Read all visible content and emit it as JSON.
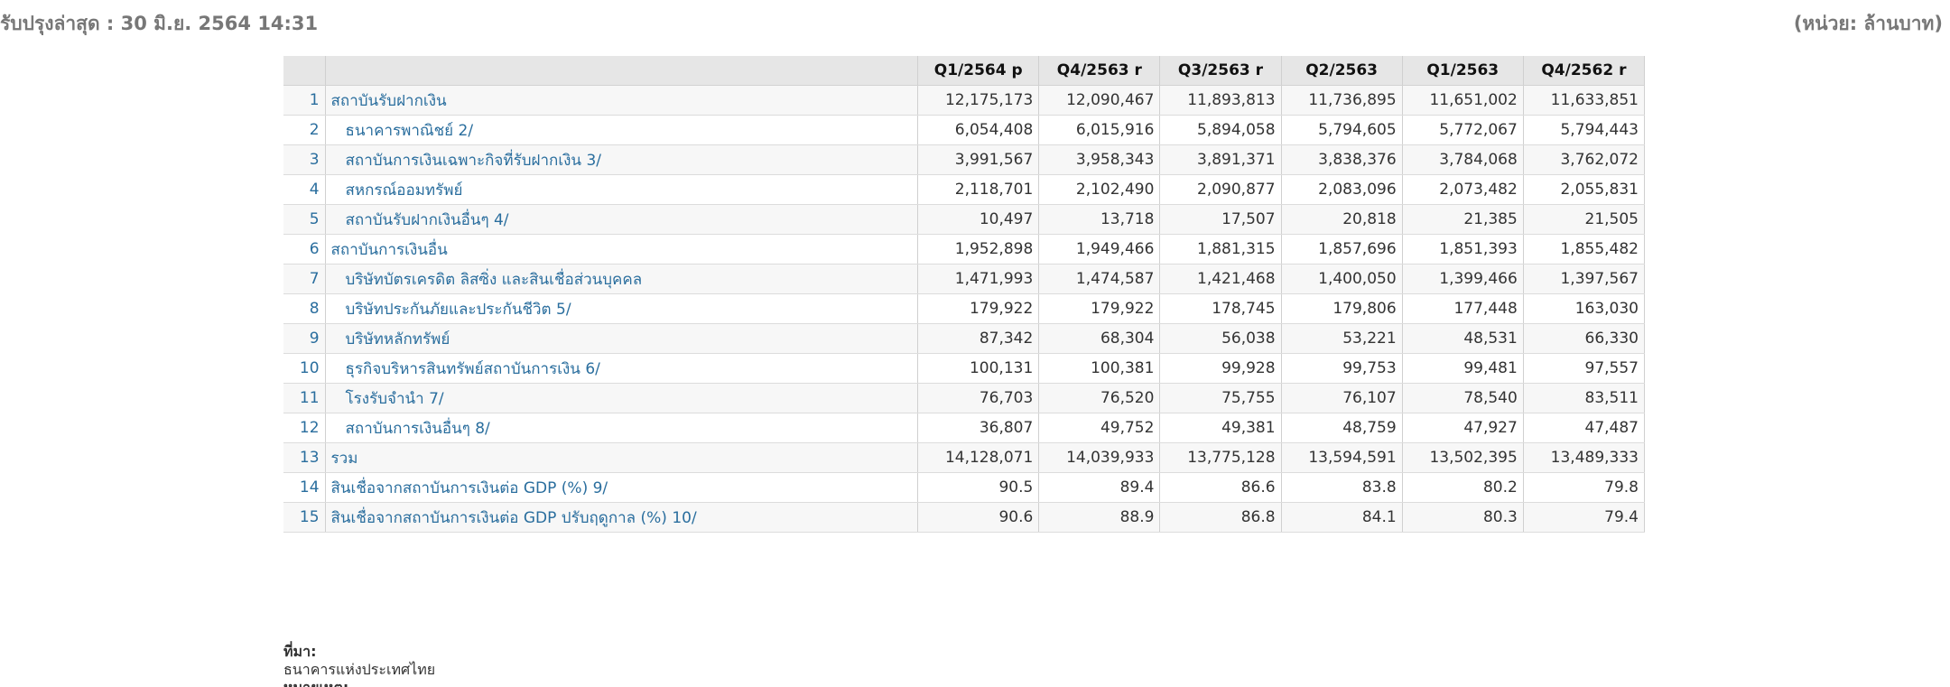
{
  "header": {
    "last_updated": "รับปรุงล่าสุด : 30 มิ.ย. 2564 14:31",
    "unit": "(หน่วย: ล้านบาท)"
  },
  "table": {
    "columns": [
      "Q1/2564 p",
      "Q4/2563 r",
      "Q3/2563 r",
      "Q2/2563",
      "Q1/2563",
      "Q4/2562 r"
    ],
    "rows": [
      {
        "index": "1",
        "name": "สถาบันรับฝากเงิน",
        "values": [
          "12,175,173",
          "12,090,467",
          "11,893,813",
          "11,736,895",
          "11,651,002",
          "11,633,851"
        ]
      },
      {
        "index": "2",
        "name": "ธนาคารพาณิชย์ 2/",
        "values": [
          "6,054,408",
          "6,015,916",
          "5,894,058",
          "5,794,605",
          "5,772,067",
          "5,794,443"
        ]
      },
      {
        "index": "3",
        "name": "สถาบันการเงินเฉพาะกิจที่รับฝากเงิน 3/",
        "values": [
          "3,991,567",
          "3,958,343",
          "3,891,371",
          "3,838,376",
          "3,784,068",
          "3,762,072"
        ]
      },
      {
        "index": "4",
        "name": "สหกรณ์ออมทรัพย์",
        "values": [
          "2,118,701",
          "2,102,490",
          "2,090,877",
          "2,083,096",
          "2,073,482",
          "2,055,831"
        ]
      },
      {
        "index": "5",
        "name": "สถาบันรับฝากเงินอื่นๆ 4/",
        "values": [
          "10,497",
          "13,718",
          "17,507",
          "20,818",
          "21,385",
          "21,505"
        ]
      },
      {
        "index": "6",
        "name": "สถาบันการเงินอื่น",
        "values": [
          "1,952,898",
          "1,949,466",
          "1,881,315",
          "1,857,696",
          "1,851,393",
          "1,855,482"
        ]
      },
      {
        "index": "7",
        "name": "บริษัทบัตรเครดิต ลิสซิ่ง และสินเชื่อส่วนบุคคล",
        "values": [
          "1,471,993",
          "1,474,587",
          "1,421,468",
          "1,400,050",
          "1,399,466",
          "1,397,567"
        ]
      },
      {
        "index": "8",
        "name": "บริษัทประกันภัยและประกันชีวิต 5/",
        "values": [
          "179,922",
          "179,922",
          "178,745",
          "179,806",
          "177,448",
          "163,030"
        ]
      },
      {
        "index": "9",
        "name": "บริษัทหลักทรัพย์",
        "values": [
          "87,342",
          "68,304",
          "56,038",
          "53,221",
          "48,531",
          "66,330"
        ]
      },
      {
        "index": "10",
        "name": "ธุรกิจบริหารสินทรัพย์สถาบันการเงิน 6/",
        "values": [
          "100,131",
          "100,381",
          "99,928",
          "99,753",
          "99,481",
          "97,557"
        ]
      },
      {
        "index": "11",
        "name": "โรงรับจำนำ 7/",
        "values": [
          "76,703",
          "76,520",
          "75,755",
          "76,107",
          "78,540",
          "83,511"
        ]
      },
      {
        "index": "12",
        "name": "สถาบันการเงินอื่นๆ 8/",
        "values": [
          "36,807",
          "49,752",
          "49,381",
          "48,759",
          "47,927",
          "47,487"
        ]
      },
      {
        "index": "13",
        "name": "รวม",
        "values": [
          "14,128,071",
          "14,039,933",
          "13,775,128",
          "13,594,591",
          "13,502,395",
          "13,489,333"
        ]
      },
      {
        "index": "14",
        "name": "สินเชื่อจากสถาบันการเงินต่อ GDP (%) 9/",
        "values": [
          "90.5",
          "89.4",
          "86.6",
          "83.8",
          "80.2",
          "79.8"
        ]
      },
      {
        "index": "15",
        "name": "สินเชื่อจากสถาบันการเงินต่อ GDP ปรับฤดูกาล (%) 10/",
        "values": [
          "90.6",
          "88.9",
          "86.8",
          "84.1",
          "80.3",
          "79.4"
        ]
      }
    ]
  },
  "footer": {
    "source_label": "ที่มา:",
    "source_value": "ธนาคารแห่งประเทศไทย",
    "notes_label": "หมายเหตุ:"
  }
}
